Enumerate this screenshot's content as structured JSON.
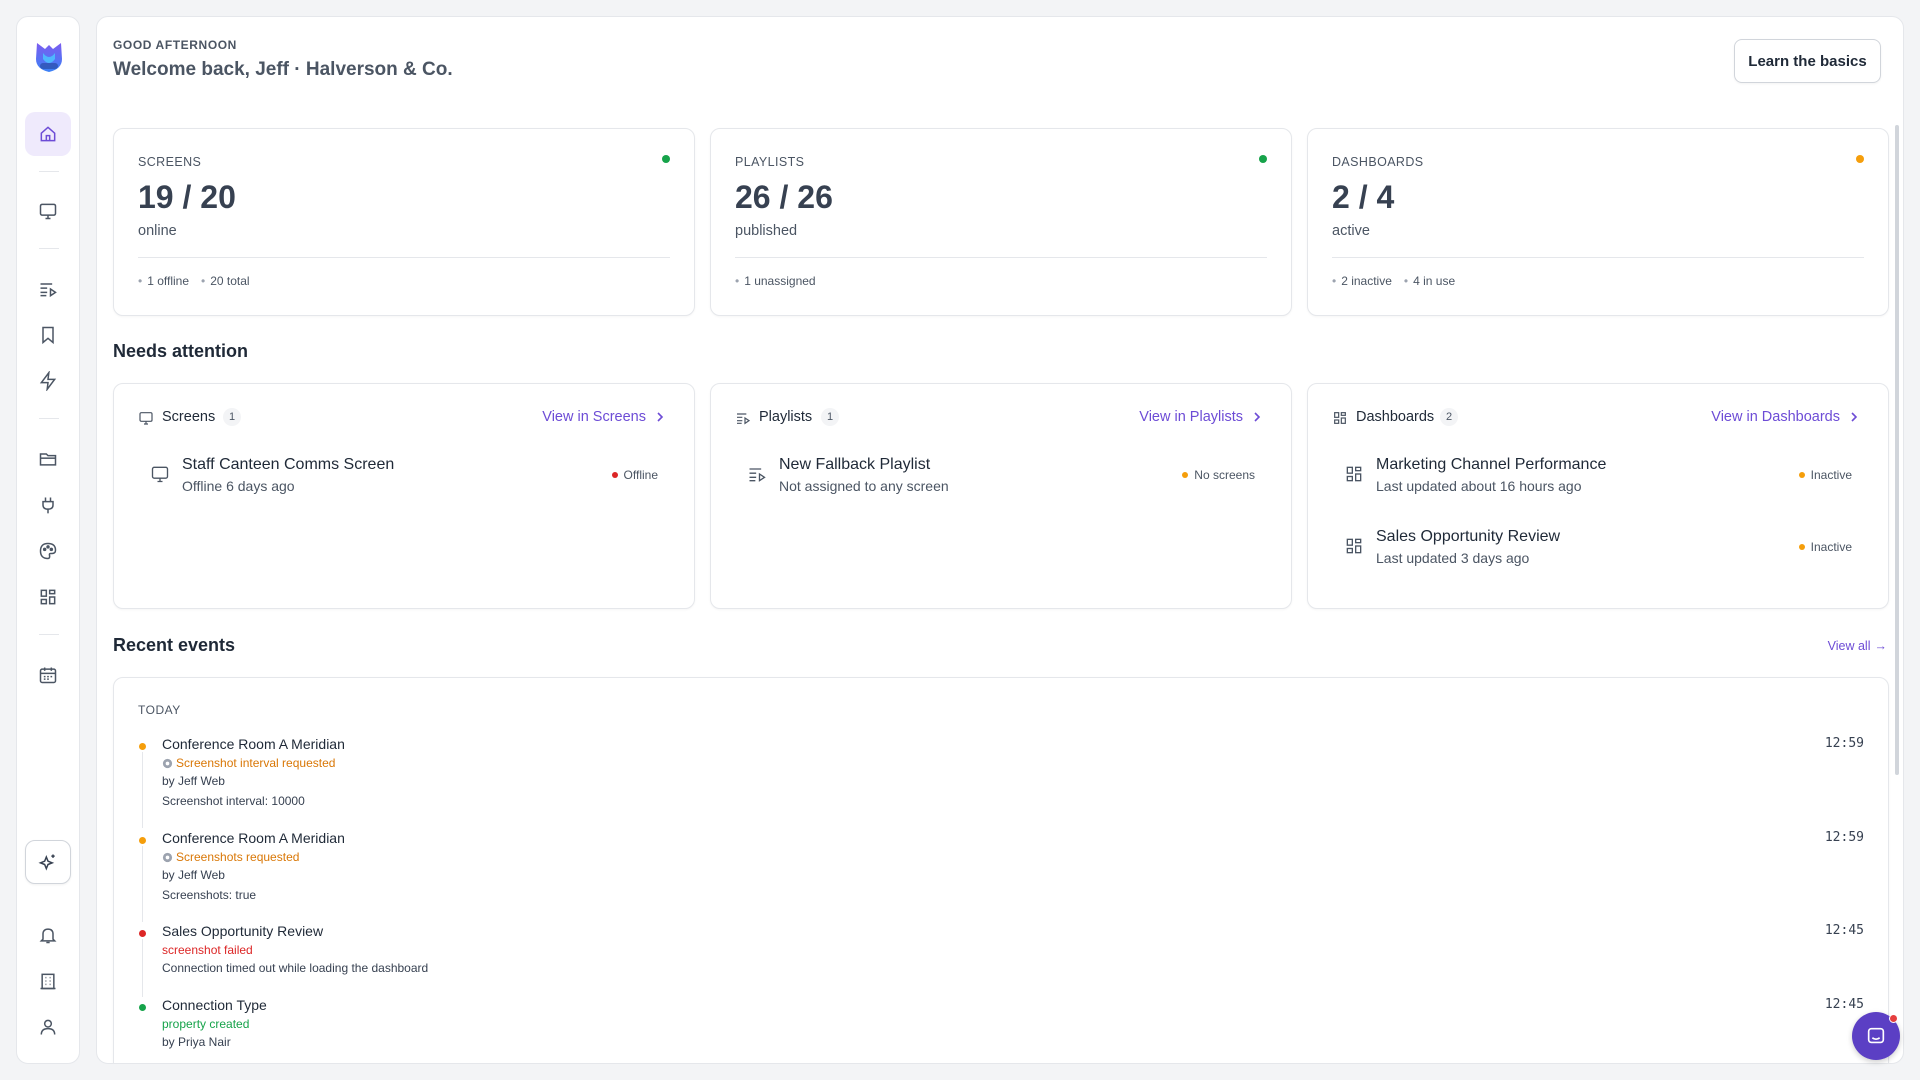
{
  "greeting": {
    "kicker": "GOOD AFTERNOON",
    "title": "Welcome back, Jeff · Halverson & Co.",
    "learn_button": "Learn the basics"
  },
  "stats": [
    {
      "label": "SCREENS",
      "value": "19 / 20",
      "sub": "online",
      "status_color": "#16a34a",
      "meta": [
        "1 offline",
        "20 total"
      ]
    },
    {
      "label": "PLAYLISTS",
      "value": "26 / 26",
      "sub": "published",
      "status_color": "#16a34a",
      "meta": [
        "1 unassigned"
      ]
    },
    {
      "label": "DASHBOARDS",
      "value": "2 / 4",
      "sub": "active",
      "status_color": "#f59e0b",
      "meta": [
        "2 inactive",
        "4 in use"
      ]
    }
  ],
  "needs_attention": {
    "title": "Needs attention",
    "cards": [
      {
        "icon": "monitor-icon",
        "label": "Screens",
        "count": "1",
        "link": "View in Screens",
        "items": [
          {
            "icon": "monitor-icon",
            "title": "Staff Canteen Comms Screen",
            "desc": "Offline 6 days ago",
            "status": "Offline",
            "status_color": "#dc2626"
          }
        ]
      },
      {
        "icon": "playlist-icon",
        "label": "Playlists",
        "count": "1",
        "link": "View in Playlists",
        "items": [
          {
            "icon": "playlist-icon",
            "title": "New Fallback Playlist",
            "desc": "Not assigned to any screen",
            "status": "No screens",
            "status_color": "#f59e0b"
          }
        ]
      },
      {
        "icon": "dashboard-grid-icon",
        "label": "Dashboards",
        "count": "2",
        "link": "View in Dashboards",
        "items": [
          {
            "icon": "dashboard-grid-icon",
            "title": "Marketing Channel Performance",
            "desc": "Last updated about 16 hours ago",
            "status": "Inactive",
            "status_color": "#f59e0b"
          },
          {
            "icon": "dashboard-grid-icon",
            "title": "Sales Opportunity Review",
            "desc": "Last updated 3 days ago",
            "status": "Inactive",
            "status_color": "#f59e0b"
          }
        ]
      }
    ]
  },
  "recent_events": {
    "title": "Recent events",
    "view_all": "View all",
    "group": "TODAY",
    "events": [
      {
        "title": "Conference Room A Meridian",
        "action": "Screenshot interval requested",
        "action_color": "#d97706",
        "dot_color": "#f59e0b",
        "has_gear": true,
        "lines": [
          "by Jeff Web",
          "Screenshot interval: 10000"
        ],
        "time": "12:59"
      },
      {
        "title": "Conference Room A Meridian",
        "action": "Screenshots requested",
        "action_color": "#d97706",
        "dot_color": "#f59e0b",
        "has_gear": true,
        "lines": [
          "by Jeff Web",
          "Screenshots: true"
        ],
        "time": "12:59"
      },
      {
        "title": "Sales Opportunity Review",
        "action": "screenshot failed",
        "action_color": "#dc2626",
        "dot_color": "#dc2626",
        "has_gear": false,
        "lines": [
          "Connection timed out while loading the dashboard"
        ],
        "time": "12:45"
      },
      {
        "title": "Connection Type",
        "action": "property created",
        "action_color": "#16a34a",
        "dot_color": "#16a34a",
        "has_gear": false,
        "lines": [
          "by Priya Nair"
        ],
        "time": "12:45"
      }
    ]
  },
  "sidebar": {
    "items": [
      {
        "name": "home-icon",
        "active": true
      },
      {
        "name": "monitor-icon"
      },
      {
        "name": "playlist-icon"
      },
      {
        "name": "bookmark-icon"
      },
      {
        "name": "lightning-icon"
      },
      {
        "name": "folder-icon"
      },
      {
        "name": "plug-icon"
      },
      {
        "name": "palette-icon"
      },
      {
        "name": "dashboard-grid-icon"
      },
      {
        "name": "calendar-icon"
      },
      {
        "name": "sparkles-icon"
      },
      {
        "name": "bell-icon"
      },
      {
        "name": "building-icon"
      },
      {
        "name": "user-icon"
      }
    ]
  }
}
